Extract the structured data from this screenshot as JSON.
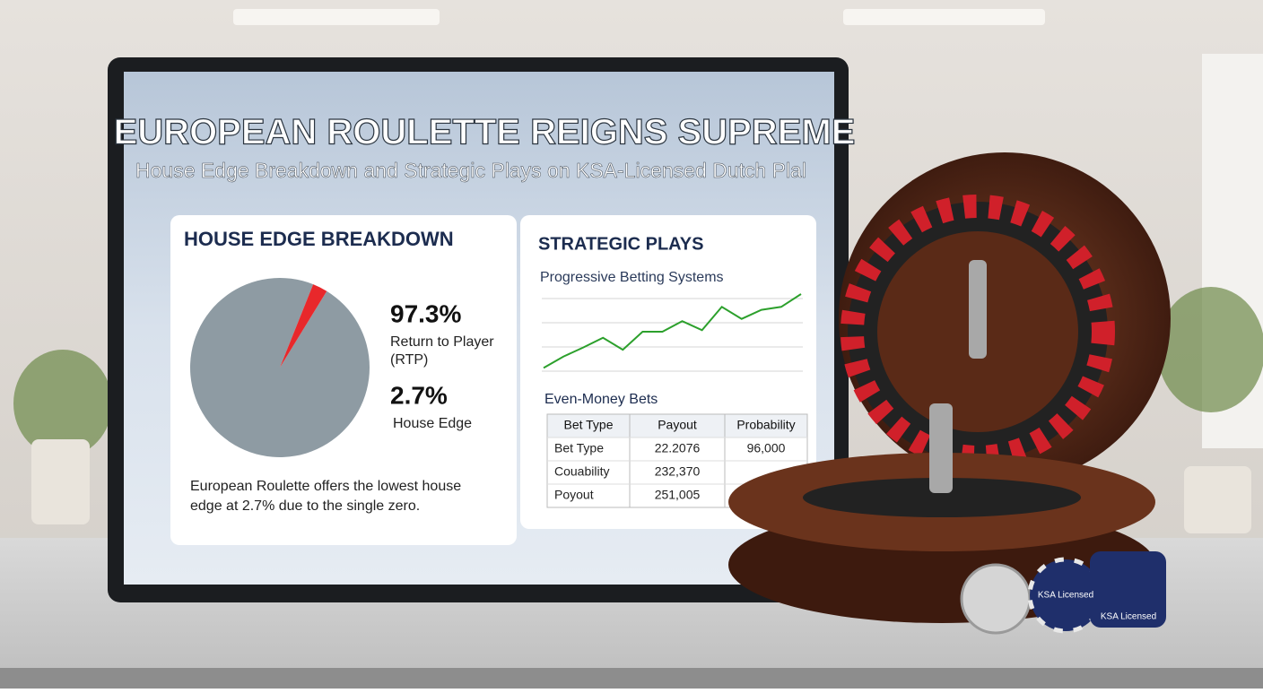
{
  "header": {
    "title": "EUROPEAN ROULETTE REIGNS SUPREME",
    "subtitle": "House Edge Breakdown and Strategic Plays on KSA-Licensed Dutch Plal"
  },
  "chart_data": [
    {
      "type": "pie",
      "title": "HOUSE EDGE BREAKDOWN",
      "categories": [
        "Return to Player (RTP)",
        "House Edge"
      ],
      "values": [
        97.3,
        2.7
      ],
      "value_labels": [
        "97.3%",
        "2.7%"
      ],
      "colors": [
        "#8e9ba3",
        "#e8282b"
      ],
      "note": "European Roulette offers the lowest house edge at 2.7% due to the single zero."
    },
    {
      "type": "line",
      "title": "STRATEGIC PLAYS",
      "subtitle": "Progressive Betting Systems",
      "categories": [
        null,
        null,
        null,
        null,
        null,
        null,
        null,
        null,
        null,
        null,
        null,
        null,
        null,
        null
      ],
      "values": [
        2,
        17,
        29,
        42,
        26,
        50,
        50,
        64,
        52,
        83,
        67,
        79,
        83,
        100
      ],
      "ylim": [
        0,
        100
      ],
      "color": "#2ca02c"
    }
  ],
  "table": {
    "title": "Even-Money Bets",
    "header": [
      "Bet Type",
      "Payout",
      "Probability"
    ],
    "rows": [
      [
        "Bet Type",
        "22.2076",
        "96,000"
      ],
      [
        "Couability",
        "232,370"
      ],
      [
        "Poyout",
        "251,005"
      ]
    ]
  },
  "chips": [
    "KSA Licensed",
    "KSA Licensed"
  ]
}
